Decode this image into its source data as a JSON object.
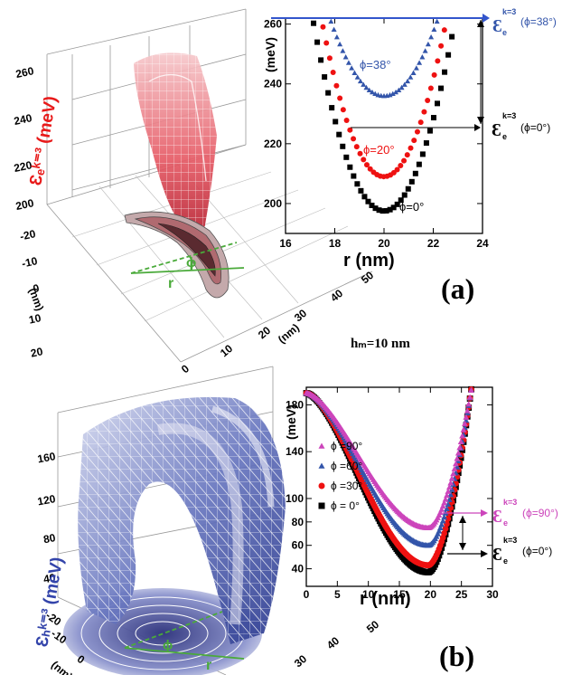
{
  "texts": {
    "label_a": "(a)",
    "label_b": "(b)",
    "hm": "hₘ=10 nm",
    "z3d_a": "Ɛₑᵏ⁼³ (meV)",
    "z3d_b": "Ɛₕᵏ⁼³ (meV)",
    "phi": "ϕ",
    "r": "r",
    "nm": "(nm)",
    "eps": "Ɛ",
    "eps_sub": "e",
    "eps_sup": "k=3",
    "ann_a_top": "(ϕ=38°)",
    "ann_a_bot": "(ϕ=0°)",
    "ann_b_top": "(ϕ=90°)",
    "ann_b_bot": "(ϕ=0°)"
  },
  "surface3d": {
    "a": {
      "z_ticks": [
        "260",
        "240",
        "220",
        "200"
      ],
      "y_ticks": [
        "-20",
        "-10",
        "0",
        "10",
        "20"
      ],
      "x_ticks": [
        "0",
        "10",
        "20",
        "30",
        "40",
        "50"
      ]
    },
    "b": {
      "z_ticks": [
        "160",
        "120",
        "80",
        "40"
      ],
      "y_ticks": [
        "-20",
        "-10",
        "0"
      ],
      "x_ticks": [
        "30",
        "40",
        "50"
      ]
    }
  },
  "colors": {
    "blue": "#3355aa",
    "red": "#ee1111",
    "black": "#000000",
    "magenta": "#cc44bb",
    "arrow": "#3355cc"
  },
  "chart_data": [
    {
      "type": "scatter",
      "panel": "(a)",
      "xlabel": "r (nm)",
      "ylabel": "(meV)",
      "xlim": [
        16,
        24
      ],
      "ylim": [
        190,
        262
      ],
      "x_ticks": [
        "16",
        "18",
        "20",
        "22",
        "24"
      ],
      "y_ticks": [
        "200",
        "220",
        "240",
        "260"
      ],
      "series": [
        {
          "name": "ϕ=38°",
          "color": "#3355aa",
          "marker": "triangle",
          "min": 236,
          "center": 20,
          "width": 2.2,
          "x_from": 17.25,
          "x_to": 22.75
        },
        {
          "name": "ϕ=20°",
          "color": "#ee1111",
          "marker": "circle",
          "min": 209,
          "center": 20,
          "width": 2.55,
          "x_from": 16.7,
          "x_to": 23.0
        },
        {
          "name": "ϕ=0°",
          "color": "#000000",
          "marker": "square",
          "min": 197.5,
          "center": 20,
          "width": 2.9,
          "x_from": 16.4,
          "x_to": 23.2
        }
      ],
      "annotations": [
        "ϕ=38°",
        "ϕ=20°",
        "ϕ=0°"
      ]
    },
    {
      "type": "scatter",
      "panel": "(b)",
      "xlabel": "r (nm)",
      "ylabel": "(meV)",
      "xlim": [
        0,
        30
      ],
      "ylim": [
        25,
        195
      ],
      "x_ticks": [
        "0",
        "5",
        "10",
        "15",
        "20",
        "25",
        "30"
      ],
      "y_ticks": [
        "40",
        "60",
        "80",
        "100",
        "140",
        "180"
      ],
      "legend": [
        "ϕ =90°",
        "ϕ =60°",
        "ϕ =30°",
        "ϕ = 0°"
      ],
      "series": [
        {
          "name": "ϕ =90°",
          "color": "#cc44bb",
          "marker": "triangle",
          "min": 75
        },
        {
          "name": "ϕ =60°",
          "color": "#3355aa",
          "marker": "triangle",
          "min": 60
        },
        {
          "name": "ϕ =30°",
          "color": "#ee1111",
          "marker": "circle",
          "min": 43
        },
        {
          "name": "ϕ = 0°",
          "color": "#000000",
          "marker": "square",
          "min": 37
        }
      ],
      "series_shape": {
        "start_value": 190,
        "center": 19.7
      }
    }
  ]
}
